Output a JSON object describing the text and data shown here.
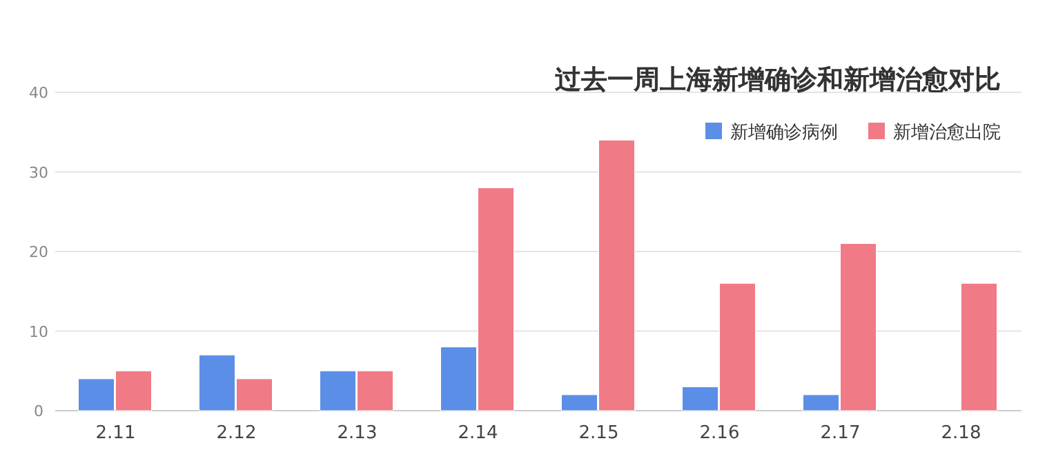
{
  "chart_data": {
    "type": "bar",
    "title": "过去一周上海新增确诊和新增治愈对比",
    "categories": [
      "2.11",
      "2.12",
      "2.13",
      "2.14",
      "2.15",
      "2.16",
      "2.17",
      "2.18"
    ],
    "series": [
      {
        "name": "新增确诊病例",
        "color": "#5b8ee6",
        "values": [
          4,
          7,
          5,
          8,
          2,
          3,
          2,
          0
        ]
      },
      {
        "name": "新增治愈出院",
        "color": "#f07a85",
        "values": [
          5,
          4,
          5,
          28,
          34,
          16,
          21,
          16
        ]
      }
    ],
    "ylim": [
      0,
      40
    ],
    "yticks": [
      0,
      10,
      20,
      30,
      40
    ],
    "grid": "y",
    "legend": "top right"
  }
}
